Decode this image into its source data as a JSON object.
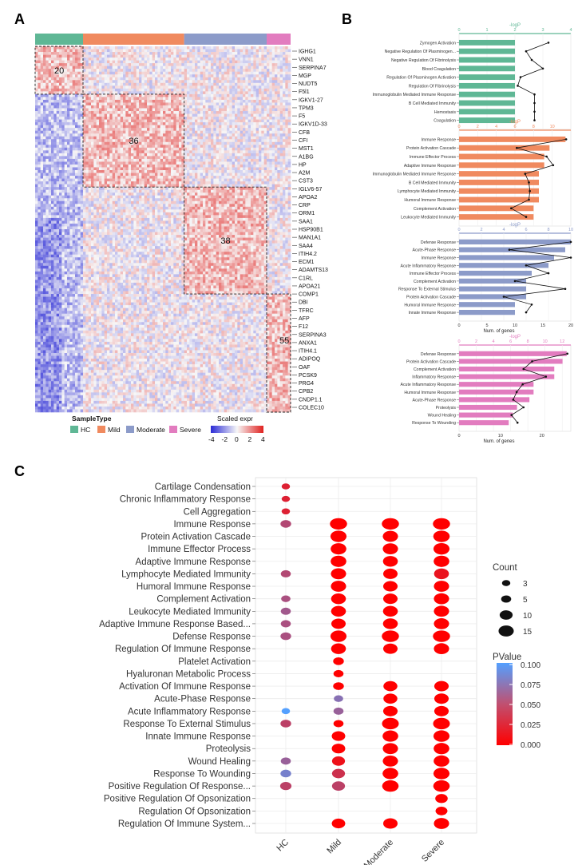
{
  "panels": {
    "a": "A",
    "b": "B",
    "c": "C"
  },
  "colors": {
    "HC": "#5fb795",
    "Mild": "#f08a5f",
    "Moderate": "#8c9bc9",
    "Severe": "#e27cbf",
    "low": "#2b2bd6",
    "mid": "#f7f7f7",
    "high": "#e0201e"
  },
  "heatmap": {
    "genes": [
      "IGHG1",
      "VNN1",
      "SERPINA7",
      "MGP",
      "NUDT5",
      "F5l1",
      "IGKV1-27",
      "TPM3",
      "F5",
      "IGKV1D-33",
      "CFB",
      "CFI",
      "MST1",
      "A1BG",
      "HP",
      "A2M",
      "CST3",
      "IGLV6-57",
      "APOA2",
      "CRP",
      "ORM1",
      "SAA1",
      "HSP90B1",
      "MAN1A1",
      "SAA4",
      "ITIH4.2",
      "ECM1",
      "ADAMTS13",
      "C1RL",
      "APOA21",
      "COMP1",
      "DBI",
      "TFRC",
      "AFP",
      "F12",
      "SERPINA3",
      "ANXA1",
      "ITIH4.1",
      "ADIPOQ",
      "OAF",
      "PCSK9",
      "PRG4",
      "CPB2",
      "CNDP1.1",
      "COLEC10"
    ],
    "clusters": [
      "20",
      "36",
      "38",
      "55"
    ],
    "legend_title": "SampleType",
    "groups": [
      "HC",
      "Mild",
      "Moderate",
      "Severe"
    ],
    "scale_title": "Scaled expr",
    "scale_ticks": [
      "-4",
      "-2",
      "0",
      "2",
      "4"
    ]
  },
  "chart_data": [
    {
      "type": "bar",
      "panel": "B1",
      "categories": [
        "Zymogen Activation",
        "Negative Regulation Of Plasminogen...",
        "Negative Regulation Of Fibrinolysis",
        "Blood Coagulation",
        "Regulation Of Plasminogen Activation",
        "Regulation Of Fibrinolysis",
        "Immunoglobulin Mediated Immune Response",
        "B Cell Mediated Immunity",
        "Hemostasis",
        "Coagulation"
      ],
      "values": [
        5,
        5,
        5,
        5,
        5,
        5,
        5,
        5,
        5,
        5
      ],
      "line_values": [
        3.2,
        2.4,
        2.6,
        3.0,
        2.2,
        2.1,
        2.7,
        2.7,
        2.7,
        2.7
      ],
      "top_axis_label": "-logP",
      "top_ticks": [
        "0",
        "1",
        "2",
        "3",
        "4"
      ],
      "top_lim": [
        0,
        4
      ],
      "xlim": [
        0,
        10
      ]
    },
    {
      "type": "bar",
      "panel": "B2",
      "categories": [
        "Immune Response",
        "Protein Activation Cascade",
        "Immune Effector Process",
        "Adaptive Immune Response",
        "Immunoglobulin Mediated Immune Response",
        "B Cell Mediated Immunity",
        "Lymphocyte Mediated Immunity",
        "Humoral Immune Response",
        "Complement Activation",
        "Leukocyte Mediated Immunity"
      ],
      "values": [
        20,
        17,
        16,
        16,
        15,
        15,
        15,
        15,
        14,
        14
      ],
      "line_values": [
        11.5,
        6.2,
        9.4,
        10.1,
        7.1,
        7.5,
        7.6,
        7.5,
        5.6,
        7.2
      ],
      "top_axis_label": "-logP",
      "top_ticks": [
        "0",
        "2",
        "4",
        "6",
        "8",
        "10"
      ],
      "top_lim": [
        0,
        12
      ],
      "xlim": [
        0,
        21
      ]
    },
    {
      "type": "bar",
      "panel": "B3",
      "categories": [
        "Defense Response",
        "Acute-Phase Response",
        "Immune Response",
        "Acute Inflammatory Response",
        "Immune Effector Process",
        "Complement Activation",
        "Response To External Stimulus",
        "Protein Activation Cascade",
        "Humoral Immune Response",
        "Innate Immune Response"
      ],
      "values": [
        20,
        19,
        17,
        16,
        13,
        12,
        12,
        12,
        10,
        10
      ],
      "line_values": [
        10,
        4.5,
        10,
        6,
        8,
        5,
        9.5,
        4,
        6.5,
        6
      ],
      "top_axis_label": "-logP",
      "top_ticks": [
        "0",
        "2",
        "4",
        "6",
        "8",
        "10"
      ],
      "top_lim": [
        0,
        10
      ],
      "xlabel": "Num. of genes",
      "xticks": [
        "0",
        "5",
        "10",
        "15",
        "20"
      ],
      "xlim": [
        0,
        20
      ]
    },
    {
      "type": "bar",
      "panel": "B4",
      "categories": [
        "Defense Response",
        "Protein Activation Cascade",
        "Complement Activation",
        "Inflammatory Response",
        "Acute Inflammatory Response",
        "Humoral Immune Response",
        "Acute-Phase Response",
        "Proteolysis",
        "Wound Healing",
        "Response To Wounding"
      ],
      "values": [
        26,
        25,
        23,
        23,
        18,
        18,
        17,
        14,
        13,
        12
      ],
      "line_values": [
        12.6,
        8.5,
        7.5,
        10.1,
        7.4,
        6.7,
        6.3,
        7.5,
        6.1,
        6.8
      ],
      "top_axis_label": "-logP",
      "top_ticks": [
        "0",
        "2",
        "4",
        "6",
        "8",
        "10",
        "12"
      ],
      "top_lim": [
        0,
        13
      ],
      "xlabel": "Num. of genes",
      "xticks": [
        "0",
        "10",
        "20"
      ],
      "xlim": [
        0,
        27
      ]
    },
    {
      "type": "scatter",
      "panel": "C",
      "groups": [
        "HC",
        "Mild",
        "Moderate",
        "Severe"
      ],
      "terms": [
        "Cartilage Condensation",
        "Chronic Inflammatory Response",
        "Cell Aggregation",
        "Immune Response",
        "Protein Activation Cascade",
        "Immune Effector Process",
        "Adaptive Immune Response",
        "Lymphocyte Mediated Immunity",
        "Humoral Immune Response",
        "Complement Activation",
        "Leukocyte Mediated Immunity",
        "Adaptive Immune Response Based...",
        "Defense Response",
        "Regulation Of Immune Response",
        "Platelet Activation",
        "Hyaluronan Metabolic Process",
        "Activation Of Immune Response",
        "Acute-Phase Response",
        "Acute Inflammatory Response",
        "Response To External Stimulus",
        "Innate Immune Response",
        "Proteolysis",
        "Wound Healing",
        "Response To Wounding",
        "Positive Regulation Of Response...",
        "Positive Regulation Of Opsonization",
        "Regulation Of Opsonization",
        "Regulation Of Immune System..."
      ],
      "count": [
        [
          3,
          null,
          null,
          null
        ],
        [
          3,
          null,
          null,
          null
        ],
        [
          3,
          null,
          null,
          null
        ],
        [
          6,
          20,
          20,
          20
        ],
        [
          null,
          17,
          15,
          18
        ],
        [
          null,
          16,
          15,
          17
        ],
        [
          null,
          16,
          14,
          16
        ],
        [
          5,
          15,
          13,
          14
        ],
        [
          null,
          15,
          13,
          15
        ],
        [
          4,
          14,
          13,
          15
        ],
        [
          5,
          14,
          14,
          15
        ],
        [
          5,
          13,
          14,
          15
        ],
        [
          6,
          17,
          20,
          20
        ],
        [
          null,
          14,
          13,
          15
        ],
        [
          null,
          6,
          null,
          null
        ],
        [
          null,
          5,
          null,
          null
        ],
        [
          null,
          6,
          12,
          13
        ],
        [
          null,
          4,
          12,
          13
        ],
        [
          3,
          5,
          13,
          13
        ],
        [
          6,
          5,
          19,
          19
        ],
        [
          null,
          11,
          16,
          17
        ],
        [
          null,
          11,
          15,
          16
        ],
        [
          5,
          10,
          15,
          16
        ],
        [
          6,
          10,
          16,
          17
        ],
        [
          7,
          10,
          18,
          18
        ],
        [
          null,
          null,
          null,
          9
        ],
        [
          null,
          null,
          null,
          8
        ],
        [
          null,
          11,
          13,
          15
        ]
      ],
      "pvalue": [
        [
          0.02,
          null,
          null,
          null
        ],
        [
          0.02,
          null,
          null,
          null
        ],
        [
          0.02,
          null,
          null,
          null
        ],
        [
          0.045,
          0.0,
          0.0,
          0.0
        ],
        [
          null,
          0.0,
          0.0,
          0.0
        ],
        [
          null,
          0.0,
          0.0,
          0.0
        ],
        [
          null,
          0.0,
          0.0,
          0.0
        ],
        [
          0.045,
          0.0,
          0.0,
          0.012
        ],
        [
          null,
          0.0,
          0.0,
          0.0
        ],
        [
          0.05,
          0.0,
          0.0,
          0.0
        ],
        [
          0.055,
          0.0,
          0.0,
          0.0
        ],
        [
          0.05,
          0.0,
          0.0,
          0.0
        ],
        [
          0.05,
          0.0,
          0.0,
          0.0
        ],
        [
          null,
          0.0,
          0.0,
          0.0
        ],
        [
          null,
          0.0,
          null,
          null
        ],
        [
          null,
          0.0,
          null,
          null
        ],
        [
          null,
          0.0,
          0.0,
          0.0
        ],
        [
          null,
          0.07,
          0.0,
          0.0
        ],
        [
          0.1,
          0.06,
          0.0,
          0.0
        ],
        [
          0.04,
          0.0,
          0.0,
          0.0
        ],
        [
          null,
          0.0,
          0.0,
          0.0
        ],
        [
          null,
          0.0,
          0.0,
          0.0
        ],
        [
          0.06,
          0.01,
          0.0,
          0.0
        ],
        [
          0.08,
          0.03,
          0.0,
          0.0
        ],
        [
          0.04,
          0.04,
          0.0,
          0.0
        ],
        [
          null,
          null,
          null,
          0.0
        ],
        [
          null,
          null,
          null,
          0.0
        ],
        [
          null,
          0.0,
          0.0,
          0.0
        ]
      ],
      "count_legend": {
        "title": "Count",
        "levels": [
          3,
          5,
          10,
          15
        ],
        "labels": [
          "3",
          "5",
          "10",
          "15"
        ]
      },
      "pvalue_legend": {
        "title": "PValue",
        "labels": [
          "0.100",
          "0.075",
          "0.050",
          "0.025",
          "0.000"
        ],
        "range": [
          0,
          0.1
        ]
      }
    }
  ]
}
